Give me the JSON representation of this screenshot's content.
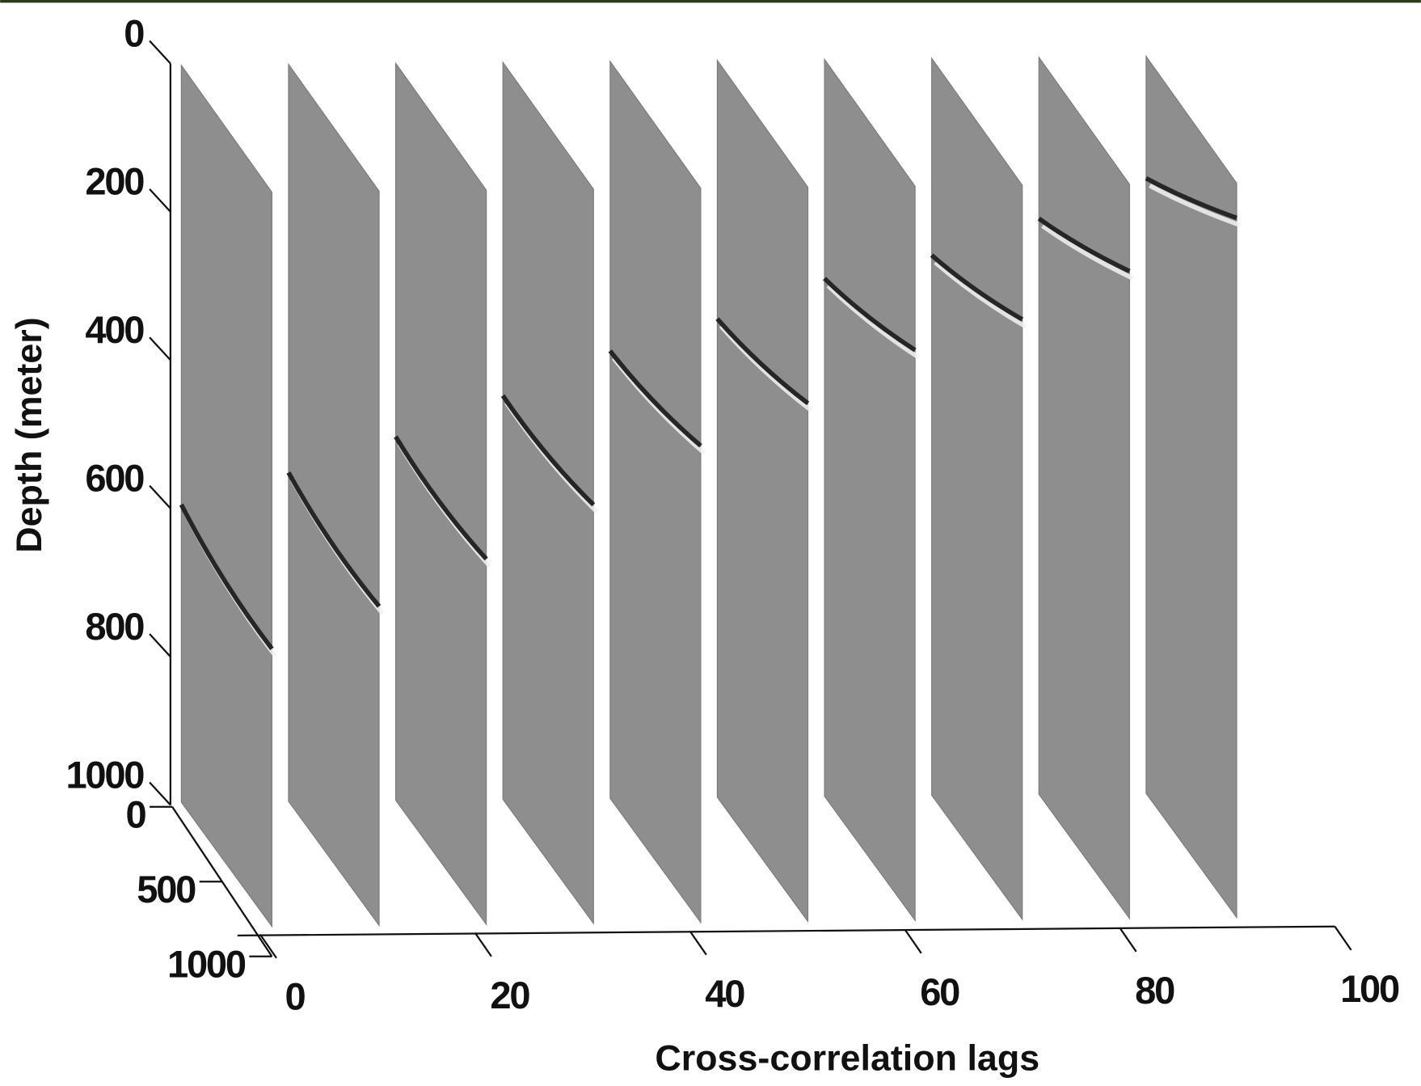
{
  "chart_data": {
    "type": "slices3d",
    "x_label": "Cross-correlation lags",
    "y_label": "Depth (meter)",
    "x": [
      0,
      10,
      20,
      30,
      40,
      50,
      60,
      70,
      80,
      90
    ],
    "values": [
      595,
      553,
      506,
      452,
      393,
      351,
      298,
      268,
      220,
      167
    ],
    "color": "#8e8e8e",
    "event_color": "#262626",
    "xlim": [
      0,
      100
    ],
    "xticks": [
      0,
      20,
      40,
      60,
      80,
      100
    ],
    "ylim": [
      0,
      1000
    ],
    "yticks": [
      0,
      200,
      400,
      600,
      800,
      1000
    ],
    "zlim": [
      0,
      1000
    ],
    "zticks": [
      0,
      500,
      1000
    ]
  }
}
